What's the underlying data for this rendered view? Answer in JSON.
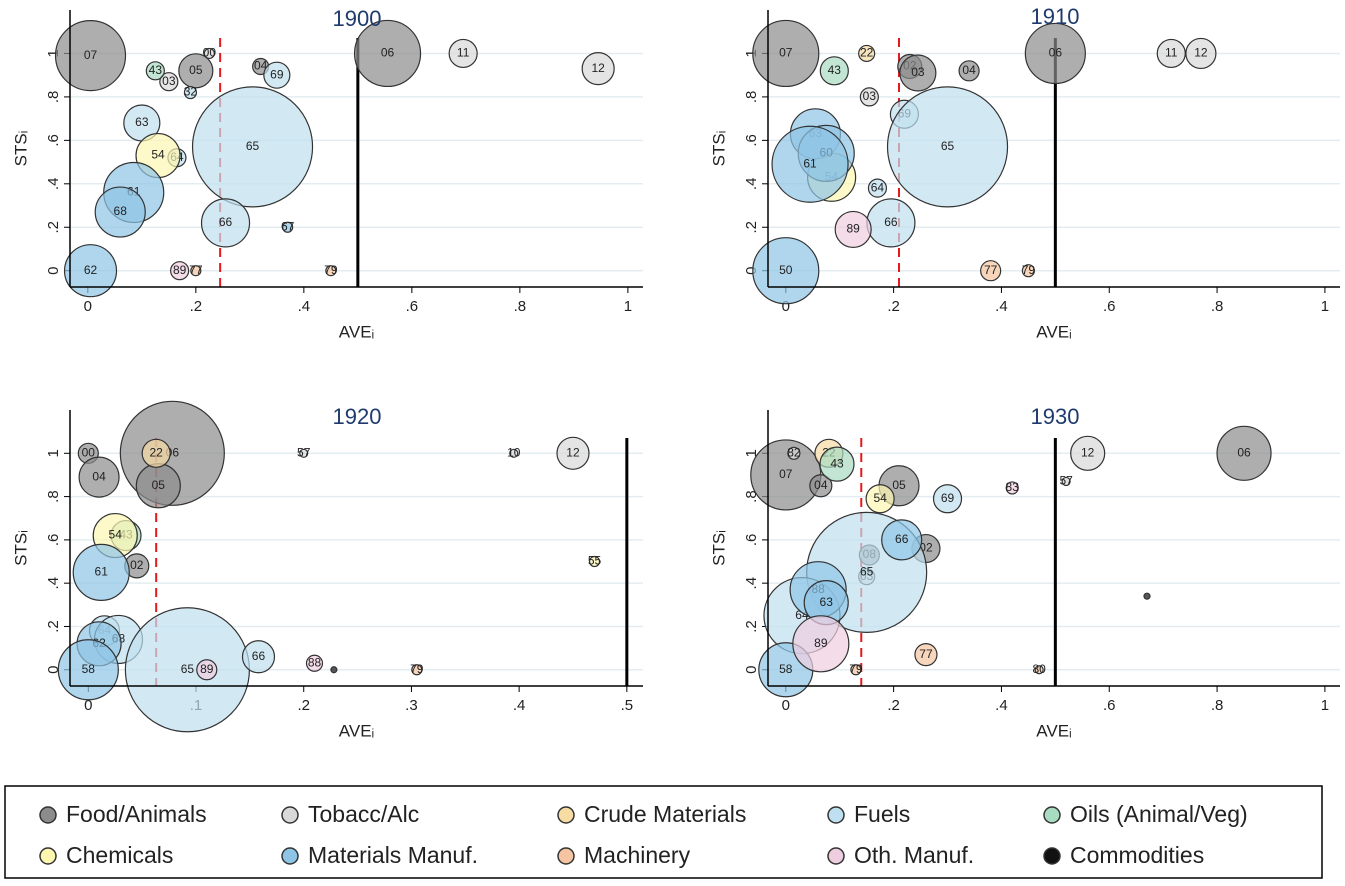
{
  "chart_data": [
    {
      "type": "scatter",
      "title": "1900",
      "x_label": "AVEᵢ",
      "y_label": "STSᵢ",
      "xlim": [
        -0.033,
        1.028
      ],
      "ylim": [
        -0.075,
        1.2
      ],
      "xticks": [
        0,
        {
          "value": 0.2,
          "label": ".2"
        },
        {
          "value": 0.4,
          "label": ".4"
        },
        {
          "value": 0.6,
          "label": ".6"
        },
        {
          "value": 0.8,
          "label": ".8"
        },
        1
      ],
      "yticks": [
        0,
        {
          "value": 0.2,
          "label": ".2"
        },
        {
          "value": 0.4,
          "label": ".4"
        },
        {
          "value": 0.6,
          "label": ".6"
        },
        {
          "value": 0.8,
          "label": ".8"
        },
        1
      ],
      "grid": true,
      "vlines": [
        {
          "value": 0.245,
          "color": "#e41a1c",
          "dash": true
        },
        {
          "value": 0.5,
          "color": "#000000",
          "dash": false
        }
      ],
      "series": [
        {
          "name": "Food/Animals",
          "color": "#8c8c8c",
          "x": [
            0.005,
            0.2,
            0.32,
            0.555
          ],
          "values": [
            0.99,
            0.92,
            0.94,
            1.0
          ],
          "sizes": [
            35,
            17,
            8,
            33
          ],
          "labels": [
            "07",
            "05",
            "04",
            "06"
          ]
        },
        {
          "name": "Tobacc/Alc",
          "color": "#d9d9d9",
          "x": [
            0.15,
            0.225,
            0.695,
            0.945
          ],
          "values": [
            0.87,
            1.0,
            1.0,
            0.93
          ],
          "sizes": [
            9,
            5,
            14,
            16
          ],
          "labels": [
            "03",
            "00",
            "11",
            "12"
          ]
        },
        {
          "name": "Crude Materials",
          "color": "#f7dca4",
          "x": [],
          "values": [],
          "sizes": [],
          "labels": []
        },
        {
          "name": "Fuels",
          "color": "#bfe0f0",
          "x": [
            0.1,
            0.35,
            0.19,
            0.305,
            0.255,
            0.165
          ],
          "values": [
            0.68,
            0.9,
            0.82,
            0.57,
            0.22,
            0.52
          ],
          "sizes": [
            18,
            13,
            6,
            60,
            24,
            9
          ],
          "labels": [
            "63",
            "69",
            "32",
            "65",
            "66",
            "64"
          ]
        },
        {
          "name": "Oils (Animal/Veg)",
          "color": "#a8dcc0",
          "x": [
            0.125
          ],
          "values": [
            0.92
          ],
          "sizes": [
            9
          ],
          "labels": [
            "43"
          ]
        },
        {
          "name": "Chemicals",
          "color": "#fdf6b0",
          "x": [
            0.13
          ],
          "values": [
            0.53
          ],
          "sizes": [
            22
          ],
          "labels": [
            "54"
          ]
        },
        {
          "name": "Materials Manuf.",
          "color": "#8ec5e6",
          "x": [
            0.085,
            0.06,
            0.005,
            0.37
          ],
          "values": [
            0.36,
            0.27,
            0.0,
            0.2
          ],
          "sizes": [
            30,
            25,
            26,
            5
          ],
          "labels": [
            "61",
            "68",
            "62",
            "67"
          ]
        },
        {
          "name": "Machinery",
          "color": "#f5c4a0",
          "x": [
            0.45,
            0.2
          ],
          "values": [
            0.0,
            0.0
          ],
          "sizes": [
            5,
            5
          ],
          "labels": [
            "79",
            "77"
          ]
        },
        {
          "name": "Oth. Manuf.",
          "color": "#efcde0",
          "x": [
            0.17
          ],
          "values": [
            0.0
          ],
          "sizes": [
            9
          ],
          "labels": [
            "89"
          ]
        },
        {
          "name": "Commodities",
          "color": "#111111",
          "x": [],
          "values": [],
          "sizes": [],
          "labels": []
        }
      ]
    },
    {
      "type": "scatter",
      "title": "1910",
      "x_label": "AVEᵢ",
      "y_label": "STSᵢ",
      "xlim": [
        -0.033,
        1.028
      ],
      "ylim": [
        -0.075,
        1.2
      ],
      "xticks": [
        0,
        {
          "value": 0.2,
          "label": ".2"
        },
        {
          "value": 0.4,
          "label": ".4"
        },
        {
          "value": 0.6,
          "label": ".6"
        },
        {
          "value": 0.8,
          "label": ".8"
        },
        1
      ],
      "yticks": [
        0,
        {
          "value": 0.2,
          "label": ".2"
        },
        {
          "value": 0.4,
          "label": ".4"
        },
        {
          "value": 0.6,
          "label": ".6"
        },
        {
          "value": 0.8,
          "label": ".8"
        },
        1
      ],
      "grid": true,
      "vlines": [
        {
          "value": 0.21,
          "color": "#e41a1c",
          "dash": true
        },
        {
          "value": 0.5,
          "color": "#000000",
          "dash": false
        }
      ],
      "series": [
        {
          "name": "Food/Animals",
          "color": "#8c8c8c",
          "x": [
            0.0,
            0.5,
            0.23,
            0.245,
            0.34
          ],
          "values": [
            1.0,
            1.0,
            0.94,
            0.91,
            0.92
          ],
          "sizes": [
            33,
            30,
            12,
            18,
            10
          ],
          "labels": [
            "07",
            "06",
            "02",
            "03",
            "04"
          ]
        },
        {
          "name": "Tobacc/Alc",
          "color": "#d9d9d9",
          "x": [
            0.155,
            0.715,
            0.77
          ],
          "values": [
            0.8,
            1.0,
            1.0
          ],
          "sizes": [
            9,
            14,
            15
          ],
          "labels": [
            "03",
            "11",
            "12"
          ]
        },
        {
          "name": "Crude Materials",
          "color": "#f7dca4",
          "x": [
            0.15
          ],
          "values": [
            1.0
          ],
          "sizes": [
            8
          ],
          "labels": [
            "22"
          ]
        },
        {
          "name": "Fuels",
          "color": "#bfe0f0",
          "x": [
            0.22,
            0.3,
            0.17,
            0.195
          ],
          "values": [
            0.72,
            0.57,
            0.38,
            0.22
          ],
          "sizes": [
            14,
            60,
            9,
            24
          ],
          "labels": [
            "69",
            "65",
            "64",
            "66"
          ]
        },
        {
          "name": "Oils (Animal/Veg)",
          "color": "#a8dcc0",
          "x": [
            0.09
          ],
          "values": [
            0.92
          ],
          "sizes": [
            14
          ],
          "labels": [
            "43"
          ]
        },
        {
          "name": "Chemicals",
          "color": "#fdf6b0",
          "x": [
            0.085
          ],
          "values": [
            0.43
          ],
          "sizes": [
            24
          ],
          "labels": [
            "54"
          ]
        },
        {
          "name": "Materials Manuf.",
          "color": "#8ec5e6",
          "x": [
            0.055,
            0.075,
            0.045,
            0.0
          ],
          "values": [
            0.63,
            0.54,
            0.49,
            0.0
          ],
          "sizes": [
            25,
            28,
            38,
            33
          ],
          "labels": [
            "63",
            "60",
            "61",
            "50"
          ]
        },
        {
          "name": "Machinery",
          "color": "#f5c4a0",
          "x": [
            0.38,
            0.45
          ],
          "values": [
            0.0,
            0.0
          ],
          "sizes": [
            10,
            6
          ],
          "labels": [
            "77",
            "79"
          ]
        },
        {
          "name": "Oth. Manuf.",
          "color": "#efcde0",
          "x": [
            0.125
          ],
          "values": [
            0.19
          ],
          "sizes": [
            18
          ],
          "labels": [
            "89"
          ]
        },
        {
          "name": "Commodities",
          "color": "#111111",
          "x": [],
          "values": [],
          "sizes": [],
          "labels": []
        }
      ]
    },
    {
      "type": "scatter",
      "title": "1920",
      "x_label": "AVEᵢ",
      "y_label": "STSᵢ",
      "xlim": [
        -0.017,
        0.515
      ],
      "ylim": [
        -0.075,
        1.2
      ],
      "xticks": [
        0,
        {
          "value": 0.1,
          "label": ".1"
        },
        {
          "value": 0.2,
          "label": ".2"
        },
        {
          "value": 0.3,
          "label": ".3"
        },
        {
          "value": 0.4,
          "label": ".4"
        },
        {
          "value": 0.5,
          "label": ".5"
        }
      ],
      "yticks": [
        0,
        {
          "value": 0.2,
          "label": ".2"
        },
        {
          "value": 0.4,
          "label": ".4"
        },
        {
          "value": 0.6,
          "label": ".6"
        },
        {
          "value": 0.8,
          "label": ".8"
        },
        1
      ],
      "grid": true,
      "vlines": [
        {
          "value": 0.063,
          "color": "#e41a1c",
          "dash": true
        },
        {
          "value": 0.5,
          "color": "#000000",
          "dash": false
        }
      ],
      "series": [
        {
          "name": "Food/Animals",
          "color": "#8c8c8c",
          "x": [
            0.078,
            0.0,
            0.01,
            0.065,
            0.045
          ],
          "values": [
            1.0,
            1.0,
            0.89,
            0.85,
            0.48
          ],
          "sizes": [
            52,
            10,
            20,
            22,
            12
          ],
          "labels": [
            "06",
            "00",
            "04",
            "05",
            "02"
          ]
        },
        {
          "name": "Tobacc/Alc",
          "color": "#d9d9d9",
          "x": [
            0.45,
            0.2,
            0.395
          ],
          "values": [
            1.0,
            1.0,
            1.0
          ],
          "sizes": [
            16,
            4,
            4
          ],
          "labels": [
            "12",
            "57",
            "10"
          ]
        },
        {
          "name": "Crude Materials",
          "color": "#f7dca4",
          "x": [
            0.063
          ],
          "values": [
            1.0
          ],
          "sizes": [
            14
          ],
          "labels": [
            "22"
          ]
        },
        {
          "name": "Fuels",
          "color": "#bfe0f0",
          "x": [
            0.015,
            0.028,
            0.092,
            0.158
          ],
          "values": [
            0.18,
            0.14,
            0.0,
            0.06
          ],
          "sizes": [
            15,
            24,
            62,
            16
          ],
          "labels": [
            "64",
            "68",
            "65",
            "66"
          ]
        },
        {
          "name": "Oils (Animal/Veg)",
          "color": "#a8dcc0",
          "x": [
            0.035
          ],
          "values": [
            0.62
          ],
          "sizes": [
            15
          ],
          "labels": [
            "43"
          ]
        },
        {
          "name": "Chemicals",
          "color": "#fdf6b0",
          "x": [
            0.025,
            0.47
          ],
          "values": [
            0.62,
            0.5
          ],
          "sizes": [
            22,
            5
          ],
          "labels": [
            "54",
            "55"
          ]
        },
        {
          "name": "Materials Manuf.",
          "color": "#8ec5e6",
          "x": [
            0.012,
            0.01,
            0.0
          ],
          "values": [
            0.45,
            0.12,
            0.0
          ],
          "sizes": [
            28,
            22,
            30
          ],
          "labels": [
            "61",
            "62",
            "58"
          ]
        },
        {
          "name": "Machinery",
          "color": "#f5c4a0",
          "x": [
            0.305
          ],
          "values": [
            0.0
          ],
          "sizes": [
            5
          ],
          "labels": [
            "79"
          ]
        },
        {
          "name": "Oth. Manuf.",
          "color": "#efcde0",
          "x": [
            0.11,
            0.21
          ],
          "values": [
            0.0,
            0.03
          ],
          "sizes": [
            10,
            8
          ],
          "labels": [
            "89",
            "88"
          ]
        },
        {
          "name": "Commodities",
          "color": "#111111",
          "x": [
            0.228
          ],
          "values": [
            0.0
          ],
          "sizes": [
            3
          ],
          "labels": [
            null
          ]
        }
      ]
    },
    {
      "type": "scatter",
      "title": "1930",
      "x_label": "AVEᵢ",
      "y_label": "STSᵢ",
      "xlim": [
        -0.033,
        1.028
      ],
      "ylim": [
        -0.075,
        1.2
      ],
      "xticks": [
        0,
        {
          "value": 0.2,
          "label": ".2"
        },
        {
          "value": 0.4,
          "label": ".4"
        },
        {
          "value": 0.6,
          "label": ".6"
        },
        {
          "value": 0.8,
          "label": ".8"
        },
        1
      ],
      "yticks": [
        0,
        {
          "value": 0.2,
          "label": ".2"
        },
        {
          "value": 0.4,
          "label": ".4"
        },
        {
          "value": 0.6,
          "label": ".6"
        },
        {
          "value": 0.8,
          "label": ".8"
        },
        1
      ],
      "grid": true,
      "vlines": [
        {
          "value": 0.14,
          "color": "#e41a1c",
          "dash": true
        },
        {
          "value": 0.5,
          "color": "#000000",
          "dash": false
        }
      ],
      "series": [
        {
          "name": "Food/Animals",
          "color": "#8c8c8c",
          "x": [
            0.0,
            0.065,
            0.21,
            0.26,
            0.85,
            0.155
          ],
          "values": [
            0.9,
            0.85,
            0.85,
            0.56,
            1.0,
            0.53
          ],
          "sizes": [
            35,
            11,
            20,
            14,
            27,
            10
          ],
          "labels": [
            "07",
            "04",
            "05",
            "02",
            "06",
            "08"
          ]
        },
        {
          "name": "Tobacc/Alc",
          "color": "#d9d9d9",
          "x": [
            0.56,
            0.015,
            0.15,
            0.52
          ],
          "values": [
            1.0,
            1.0,
            0.43,
            0.87
          ],
          "sizes": [
            17,
            6,
            8,
            4
          ],
          "labels": [
            "12",
            "82",
            "03",
            "57"
          ]
        },
        {
          "name": "Crude Materials",
          "color": "#f7dca4",
          "x": [
            0.08
          ],
          "values": [
            1.0
          ],
          "sizes": [
            14
          ],
          "labels": [
            "22"
          ]
        },
        {
          "name": "Fuels",
          "color": "#bfe0f0",
          "x": [
            0.3,
            0.15,
            0.03
          ],
          "values": [
            0.79,
            0.45,
            0.25
          ],
          "sizes": [
            14,
            60,
            38
          ],
          "labels": [
            "69",
            "65",
            "64"
          ]
        },
        {
          "name": "Oils (Animal/Veg)",
          "color": "#a8dcc0",
          "x": [
            0.095
          ],
          "values": [
            0.95
          ],
          "sizes": [
            17
          ],
          "labels": [
            "43"
          ]
        },
        {
          "name": "Chemicals",
          "color": "#fdf6b0",
          "x": [
            0.175
          ],
          "values": [
            0.79
          ],
          "sizes": [
            14
          ],
          "labels": [
            "54"
          ]
        },
        {
          "name": "Materials Manuf.",
          "color": "#8ec5e6",
          "x": [
            0.215,
            0.06,
            0.075,
            0.0
          ],
          "values": [
            0.6,
            0.37,
            0.31,
            0.0
          ],
          "sizes": [
            20,
            28,
            22,
            27
          ],
          "labels": [
            "66",
            "88",
            "63",
            "58"
          ]
        },
        {
          "name": "Machinery",
          "color": "#f5c4a0",
          "x": [
            0.26,
            0.13,
            0.47
          ],
          "values": [
            0.07,
            0.0,
            0.0
          ],
          "sizes": [
            11,
            5,
            4
          ],
          "labels": [
            "77",
            "79",
            "80"
          ]
        },
        {
          "name": "Oth. Manuf.",
          "color": "#efcde0",
          "x": [
            0.065,
            0.42
          ],
          "values": [
            0.12,
            0.84
          ],
          "sizes": [
            28,
            6
          ],
          "labels": [
            "89",
            "83"
          ]
        },
        {
          "name": "Commodities",
          "color": "#111111",
          "x": [
            0.67
          ],
          "values": [
            0.34
          ],
          "sizes": [
            3
          ],
          "labels": [
            null
          ]
        }
      ]
    }
  ]
}
